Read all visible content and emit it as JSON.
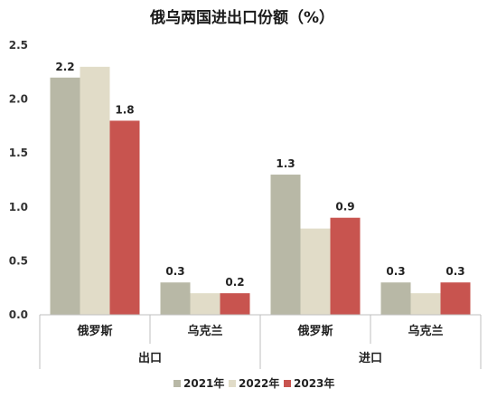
{
  "chart_data": {
    "type": "bar",
    "title": "俄乌两国进出口份额（%）",
    "ylim": [
      0,
      2.5
    ],
    "yticks": [
      "0.0",
      "0.5",
      "1.0",
      "1.5",
      "2.0",
      "2.5"
    ],
    "groups": [
      {
        "label": "出口",
        "categories": [
          "俄罗斯",
          "乌克兰"
        ]
      },
      {
        "label": "进口",
        "categories": [
          "俄罗斯",
          "乌克兰"
        ]
      }
    ],
    "series": [
      {
        "name": "2021年",
        "color": "#b8b8a6",
        "values": [
          2.2,
          0.3,
          1.3,
          0.3
        ],
        "labels": [
          "2.2",
          "0.3",
          "1.3",
          "0.3"
        ]
      },
      {
        "name": "2022年",
        "color": "#e1dcc8",
        "values": [
          2.3,
          0.2,
          0.8,
          0.2
        ],
        "labels": [
          "",
          "",
          "",
          ""
        ]
      },
      {
        "name": "2023年",
        "color": "#c8544f",
        "values": [
          1.8,
          0.2,
          0.9,
          0.3
        ],
        "labels": [
          "1.8",
          "0.2",
          "0.9",
          "0.3"
        ]
      }
    ],
    "legend_position": "bottom",
    "grid": false
  }
}
